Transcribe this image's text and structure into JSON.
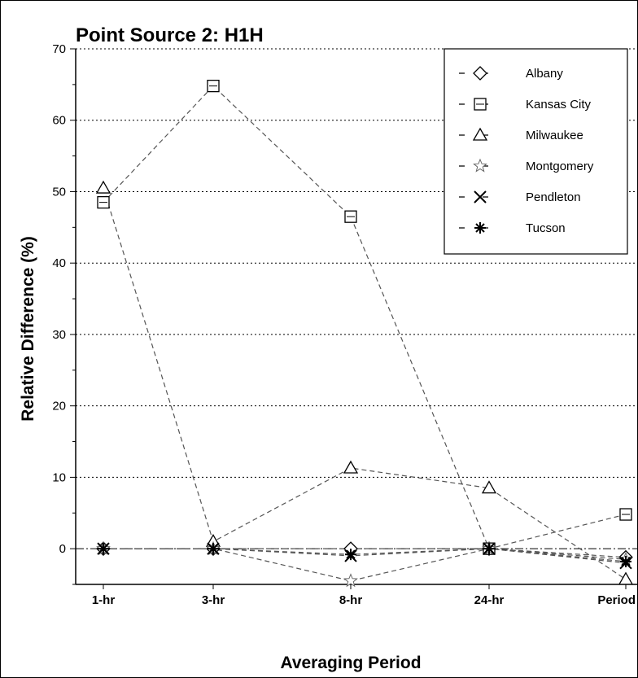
{
  "chart_data": {
    "type": "line",
    "title": "Point Source 2: H1H",
    "xlabel": "Averaging Period",
    "ylabel": "Relative Difference (%)",
    "categories": [
      "1-hr",
      "3-hr",
      "8-hr",
      "24-hr",
      "Period"
    ],
    "ylim": [
      -5,
      70
    ],
    "yticks": [
      0,
      10,
      20,
      30,
      40,
      50,
      60,
      70
    ],
    "grid": true,
    "legend_position": "top-right",
    "series": [
      {
        "name": "Albany",
        "marker": "diamond",
        "values": [
          0,
          0,
          0,
          0,
          -1.2
        ]
      },
      {
        "name": "Kansas City",
        "marker": "square",
        "values": [
          48.5,
          64.8,
          46.5,
          0,
          4.8
        ]
      },
      {
        "name": "Milwaukee",
        "marker": "triangle",
        "values": [
          50.5,
          1.0,
          11.3,
          8.5,
          -4.3
        ]
      },
      {
        "name": "Montgomery",
        "marker": "star",
        "values": [
          0,
          0,
          -4.5,
          0,
          -1.5
        ]
      },
      {
        "name": "Pendleton",
        "marker": "x",
        "values": [
          0,
          0,
          -1.0,
          0,
          -2.0
        ]
      },
      {
        "name": "Tucson",
        "marker": "asterisk",
        "values": [
          0,
          0,
          -0.8,
          0,
          -1.8
        ]
      }
    ]
  }
}
